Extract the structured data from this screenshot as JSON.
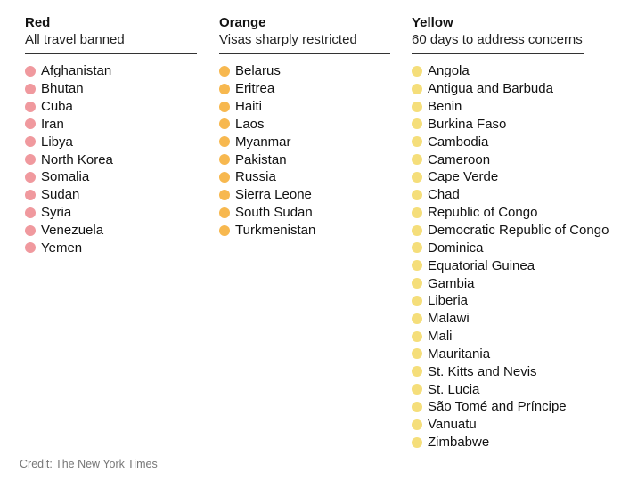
{
  "columns": [
    {
      "id": "red",
      "title": "Red",
      "subtitle": "All travel banned",
      "color": "#f0999e",
      "countries": [
        "Afghanistan",
        "Bhutan",
        "Cuba",
        "Iran",
        "Libya",
        "North Korea",
        "Somalia",
        "Sudan",
        "Syria",
        "Venezuela",
        "Yemen"
      ]
    },
    {
      "id": "orange",
      "title": "Orange",
      "subtitle": "Visas sharply restricted",
      "color": "#f7b84f",
      "countries": [
        "Belarus",
        "Eritrea",
        "Haiti",
        "Laos",
        "Myanmar",
        "Pakistan",
        "Russia",
        "Sierra Leone",
        "South Sudan",
        "Turkmenistan"
      ]
    },
    {
      "id": "yellow",
      "title": "Yellow",
      "subtitle": "60 days to address concerns",
      "color": "#f5de7a",
      "countries": [
        "Angola",
        "Antigua and Barbuda",
        "Benin",
        "Burkina Faso",
        "Cambodia",
        "Cameroon",
        "Cape Verde",
        "Chad",
        "Republic of Congo",
        "Democratic Republic of Congo",
        "Dominica",
        "Equatorial Guinea",
        "Gambia",
        "Liberia",
        "Malawi",
        "Mali",
        "Mauritania",
        "St. Kitts and Nevis",
        "St. Lucia",
        "São Tomé and Príncipe",
        "Vanuatu",
        "Zimbabwe"
      ]
    }
  ],
  "credit": "Credit: The New York Times"
}
